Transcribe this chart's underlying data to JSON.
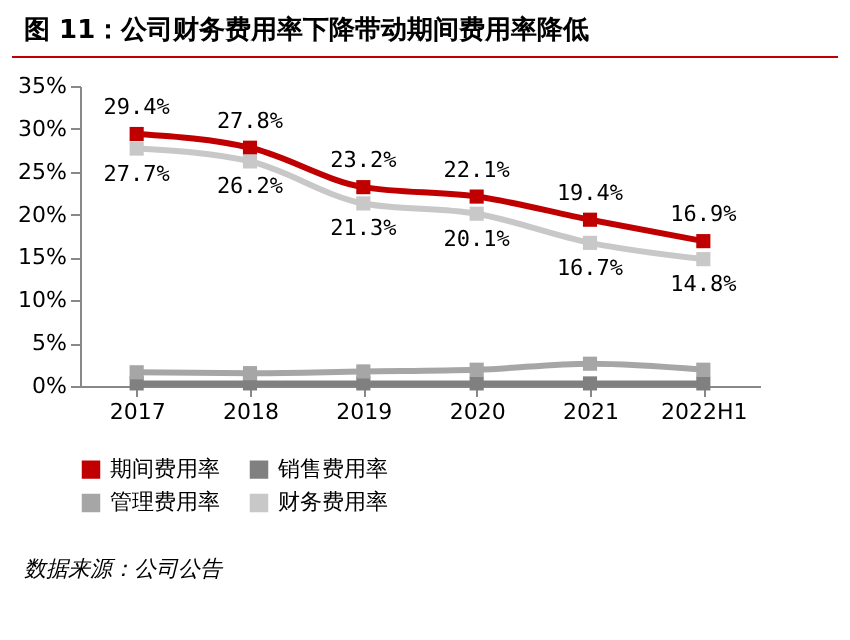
{
  "chart_data": {
    "type": "line",
    "title": "图 11：公司财务费用率下降带动期间费用率降低",
    "categories": [
      "2017",
      "2018",
      "2019",
      "2020",
      "2021",
      "2022H1"
    ],
    "series": [
      {
        "name": "期间费用率",
        "color": "#c00000",
        "values": [
          29.4,
          27.8,
          23.2,
          22.1,
          19.4,
          16.9
        ],
        "value_labels": [
          "29.4%",
          "27.8%",
          "23.2%",
          "22.1%",
          "19.4%",
          "16.9%"
        ]
      },
      {
        "name": "销售费用率",
        "color": "#808080",
        "values": [
          0.3,
          0.3,
          0.3,
          0.3,
          0.3,
          0.3
        ]
      },
      {
        "name": "管理费用率",
        "color": "#a6a6a6",
        "values": [
          1.6,
          1.5,
          1.7,
          1.9,
          2.6,
          1.9
        ]
      },
      {
        "name": "财务费用率",
        "color": "#c8c8c8",
        "values": [
          27.7,
          26.2,
          21.3,
          20.1,
          16.7,
          14.8
        ],
        "value_labels": [
          "27.7%",
          "26.2%",
          "21.3%",
          "20.1%",
          "16.7%",
          "14.8%"
        ]
      }
    ],
    "ylim": [
      0,
      35
    ],
    "yticks": [
      {
        "value": 0,
        "label": "0%"
      },
      {
        "value": 5,
        "label": "5%"
      },
      {
        "value": 10,
        "label": "10%"
      },
      {
        "value": 15,
        "label": "15%"
      },
      {
        "value": 20,
        "label": "20%"
      },
      {
        "value": 25,
        "label": "25%"
      },
      {
        "value": 30,
        "label": "30%"
      },
      {
        "value": 35,
        "label": "35%"
      }
    ],
    "grid": false,
    "legend": "bottom",
    "marker": "square",
    "line_style": "solid",
    "annotations": [
      "数据来源：公司公告"
    ]
  }
}
